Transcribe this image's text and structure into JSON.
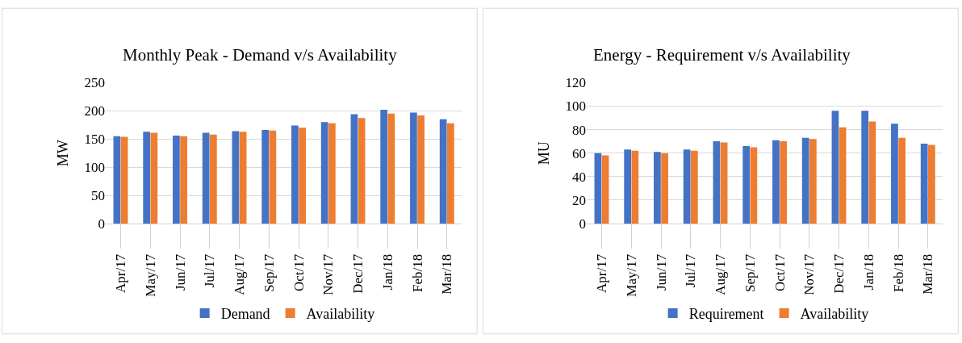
{
  "chart_data": [
    {
      "type": "bar",
      "title": "Monthly Peak - Demand v/s Availability",
      "ylabel": "MW",
      "categories": [
        "Apr/17",
        "May/17",
        "Jun/17",
        "Jul/17",
        "Aug/17",
        "Sep/17",
        "Oct/17",
        "Nov/17",
        "Dec/17",
        "Jan/18",
        "Feb/18",
        "Mar/18"
      ],
      "series": [
        {
          "name": "Demand",
          "color": "#4472c4",
          "values": [
            155,
            163,
            156,
            161,
            164,
            166,
            174,
            180,
            194,
            202,
            197,
            185
          ]
        },
        {
          "name": "Availability",
          "color": "#ed7d31",
          "values": [
            154,
            161,
            155,
            158,
            163,
            165,
            170,
            178,
            187,
            195,
            192,
            178
          ]
        }
      ],
      "ylim": [
        0,
        250
      ],
      "yticks": [
        0,
        50,
        100,
        150,
        200,
        250
      ],
      "grid": "y",
      "legend": "bottom"
    },
    {
      "type": "bar",
      "title": "Energy - Requirement v/s Availability",
      "ylabel": "MU",
      "categories": [
        "Apr/17",
        "May/17",
        "Jun/17",
        "Jul/17",
        "Aug/17",
        "Sep/17",
        "Oct/17",
        "Nov/17",
        "Dec/17",
        "Jan/18",
        "Feb/18",
        "Mar/18"
      ],
      "series": [
        {
          "name": "Requirement",
          "color": "#4472c4",
          "values": [
            60,
            63,
            61,
            63,
            70,
            66,
            71,
            73,
            96,
            96,
            85,
            68
          ]
        },
        {
          "name": "Availability",
          "color": "#ed7d31",
          "values": [
            58,
            62,
            60,
            62,
            69,
            65,
            70,
            72,
            82,
            87,
            73,
            67
          ]
        }
      ],
      "ylim": [
        0,
        120
      ],
      "yticks": [
        0,
        20,
        40,
        60,
        80,
        100,
        120
      ],
      "grid": "y",
      "legend": "bottom"
    }
  ]
}
